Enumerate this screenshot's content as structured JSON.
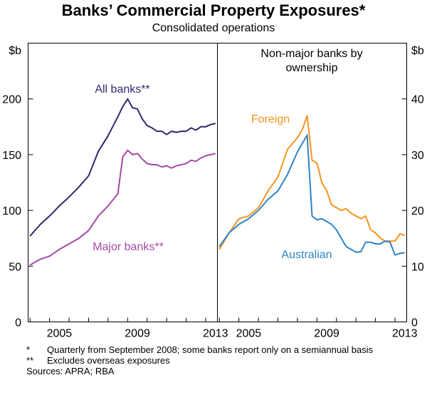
{
  "title": "Banks’ Commercial Property Exposures*",
  "subtitle": "Consolidated operations",
  "footnotes": [
    {
      "mark": "*",
      "text": "Quarterly from September 2008; some banks report only on a semiannual basis"
    },
    {
      "mark": "**",
      "text": "Excludes overseas exposures"
    }
  ],
  "sources": "Sources: APRA; RBA",
  "colors": {
    "all_banks": "#2b2a6e",
    "major_banks": "#a64aa6",
    "foreign": "#f7941d",
    "australian": "#2e84c6"
  },
  "chart_data": [
    {
      "type": "line",
      "panel": "left",
      "title": "",
      "ylabel": "$b",
      "ylim": [
        0,
        250
      ],
      "yticks": [
        0,
        50,
        100,
        150,
        200
      ],
      "xlim": [
        2003.9,
        2013.6
      ],
      "xticks": [
        2005,
        2009,
        2013
      ],
      "series": [
        {
          "name": "All banks**",
          "color_key": "all_banks",
          "x": [
            2004.0,
            2004.5,
            2005.0,
            2005.5,
            2006.0,
            2006.5,
            2007.0,
            2007.5,
            2008.0,
            2008.5,
            2008.75,
            2009.0,
            2009.25,
            2009.5,
            2009.75,
            2010.0,
            2010.25,
            2010.5,
            2010.75,
            2011.0,
            2011.25,
            2011.5,
            2011.75,
            2012.0,
            2012.25,
            2012.5,
            2012.75,
            2013.0,
            2013.25,
            2013.5
          ],
          "y": [
            77,
            87,
            95,
            104,
            112,
            121,
            131,
            153,
            167,
            184,
            193,
            200,
            192,
            191,
            182,
            176,
            174,
            171,
            171,
            168,
            171,
            170,
            171,
            171,
            174,
            172,
            175,
            175,
            177,
            178
          ]
        },
        {
          "name": "Major banks**",
          "color_key": "major_banks",
          "x": [
            2004.0,
            2004.5,
            2005.0,
            2005.5,
            2006.0,
            2006.5,
            2007.0,
            2007.5,
            2008.0,
            2008.5,
            2008.75,
            2009.0,
            2009.25,
            2009.5,
            2009.75,
            2010.0,
            2010.25,
            2010.5,
            2010.75,
            2011.0,
            2011.25,
            2011.5,
            2011.75,
            2012.0,
            2012.25,
            2012.5,
            2012.75,
            2013.0,
            2013.25,
            2013.5
          ],
          "y": [
            51,
            56,
            59,
            65,
            70,
            75,
            82,
            95,
            104,
            115,
            148,
            154,
            150,
            151,
            146,
            142,
            141,
            141,
            139,
            140,
            138,
            140,
            141,
            142,
            145,
            144,
            147,
            149,
            150,
            151
          ]
        }
      ],
      "annotations": [
        {
          "text": "All banks**",
          "color_key": "all_banks"
        },
        {
          "text": "Major banks**",
          "color_key": "major_banks"
        }
      ]
    },
    {
      "type": "line",
      "panel": "right",
      "title": "Non-major banks by ownership",
      "ylabel": "$b",
      "ylim": [
        0,
        50
      ],
      "yticks": [
        0,
        10,
        20,
        30,
        40
      ],
      "xlim": [
        2003.9,
        2013.6
      ],
      "xticks": [
        2005,
        2009,
        2013
      ],
      "series": [
        {
          "name": "Foreign",
          "color_key": "foreign",
          "x": [
            2004.0,
            2004.5,
            2005.0,
            2005.5,
            2006.0,
            2006.5,
            2007.0,
            2007.5,
            2008.0,
            2008.25,
            2008.5,
            2008.75,
            2009.0,
            2009.25,
            2009.5,
            2009.75,
            2010.0,
            2010.25,
            2010.5,
            2010.75,
            2011.0,
            2011.25,
            2011.5,
            2011.75,
            2012.0,
            2012.25,
            2012.5,
            2012.75,
            2013.0,
            2013.25,
            2013.5
          ],
          "y": [
            13,
            16,
            18.5,
            19,
            20.5,
            23.5,
            26,
            31,
            33,
            34.5,
            37,
            29,
            28.5,
            25,
            23.5,
            21,
            20.5,
            20,
            20.3,
            19.5,
            19,
            18.5,
            19,
            16.5,
            16,
            15,
            14.5,
            14.5,
            14.5,
            15.8,
            15.5
          ]
        },
        {
          "name": "Australian",
          "color_key": "australian",
          "x": [
            2004.0,
            2004.5,
            2005.0,
            2005.5,
            2006.0,
            2006.5,
            2007.0,
            2007.5,
            2008.0,
            2008.25,
            2008.5,
            2008.75,
            2009.0,
            2009.25,
            2009.5,
            2009.75,
            2010.0,
            2010.25,
            2010.5,
            2010.75,
            2011.0,
            2011.25,
            2011.5,
            2011.75,
            2012.0,
            2012.25,
            2012.5,
            2012.75,
            2013.0,
            2013.25,
            2013.5
          ],
          "y": [
            13.5,
            16,
            17.5,
            18.5,
            20,
            22,
            23.5,
            26.5,
            30.5,
            32,
            33.5,
            19,
            18.3,
            18.5,
            18,
            17.5,
            16.5,
            15,
            13.5,
            13,
            12.5,
            12.6,
            14.3,
            14.3,
            14,
            14,
            14.5,
            14.3,
            12,
            12.3,
            12.4
          ]
        }
      ],
      "annotations": [
        {
          "text": "Foreign",
          "color_key": "foreign"
        },
        {
          "text": "Australian",
          "color_key": "australian"
        }
      ]
    }
  ]
}
